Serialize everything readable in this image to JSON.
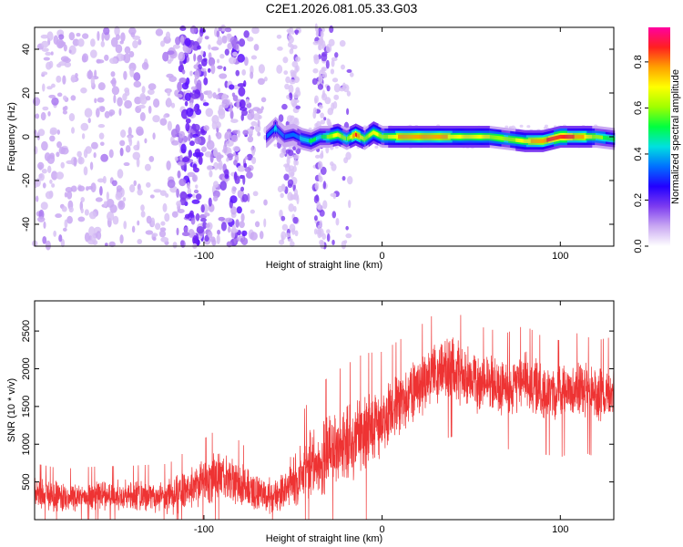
{
  "title": "C2E1.2026.081.05.33.G03",
  "chart_data": [
    {
      "type": "heatmap",
      "xlabel": "Height of straight line (km)",
      "ylabel": "Frequency (Hz)",
      "xlim": [
        -195,
        130
      ],
      "ylim": [
        -50,
        50
      ],
      "xticks": [
        -100,
        0,
        100
      ],
      "yticks": [
        -40,
        -20,
        0,
        20,
        40
      ],
      "colorbar": {
        "label": "Normalized spectral amplitude",
        "range": [
          0,
          0.95
        ],
        "ticks": [
          0.0,
          0.2,
          0.4,
          0.6,
          0.8
        ],
        "colormap": [
          "#ffffff",
          "#c9a8f2",
          "#7d3cf0",
          "#2200ff",
          "#0070ff",
          "#00e0e0",
          "#00ff40",
          "#a0ff00",
          "#ffff00",
          "#ffa000",
          "#ff2020",
          "#ff00a0"
        ]
      },
      "signal_track": {
        "x": [
          -65,
          -60,
          -55,
          -50,
          -45,
          -40,
          -35,
          -30,
          -25,
          -20,
          -15,
          -10,
          -5,
          0,
          10,
          20,
          30,
          40,
          50,
          60,
          70,
          80,
          90,
          95,
          100,
          110,
          120,
          130
        ],
        "freq": [
          0,
          4,
          0,
          1,
          -1,
          -2,
          0,
          0,
          1,
          -1,
          1,
          -1,
          2,
          0,
          0,
          0,
          0,
          0,
          0,
          0,
          -1,
          -2,
          -2,
          -1,
          0,
          0,
          0,
          -1
        ],
        "amplitude": [
          0.3,
          0.4,
          0.3,
          0.35,
          0.4,
          0.5,
          0.45,
          0.6,
          0.7,
          0.55,
          0.85,
          0.6,
          0.7,
          0.6,
          0.75,
          0.8,
          0.8,
          0.7,
          0.65,
          0.65,
          0.6,
          0.7,
          0.8,
          0.85,
          0.9,
          0.8,
          0.6,
          0.5
        ]
      },
      "noise_region_x": [
        -195,
        -65
      ]
    },
    {
      "type": "line",
      "xlabel": "Height of straight line (km)",
      "ylabel": "SNR (10 * v/v)",
      "xlim": [
        -195,
        130
      ],
      "ylim": [
        0,
        2900
      ],
      "xticks": [
        -100,
        0,
        100
      ],
      "yticks": [
        500,
        1000,
        1500,
        2000,
        2500
      ],
      "color": "#ee3333",
      "x": [
        -195,
        -180,
        -160,
        -140,
        -120,
        -100,
        -90,
        -80,
        -70,
        -60,
        -50,
        -40,
        -30,
        -20,
        -10,
        0,
        10,
        20,
        30,
        40,
        50,
        60,
        70,
        80,
        90,
        100,
        110,
        120,
        130
      ],
      "y": [
        350,
        300,
        330,
        320,
        300,
        500,
        580,
        470,
        350,
        300,
        480,
        700,
        850,
        1000,
        1150,
        1300,
        1550,
        1750,
        1950,
        2000,
        1850,
        1800,
        1750,
        1850,
        1700,
        1650,
        1750,
        1650,
        1700
      ],
      "noise_amplitude": [
        180,
        170,
        170,
        180,
        200,
        260,
        300,
        260,
        200,
        200,
        320,
        420,
        480,
        480,
        480,
        420,
        380,
        360,
        360,
        360,
        340,
        330,
        330,
        330,
        330,
        330,
        330,
        330,
        330
      ]
    }
  ]
}
